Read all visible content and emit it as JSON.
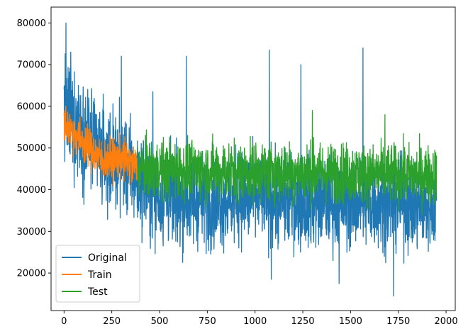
{
  "chart_data": {
    "type": "line",
    "title": "",
    "xlabel": "",
    "ylabel": "",
    "xlim": [
      -68,
      2048
    ],
    "ylim": [
      11000,
      83800
    ],
    "xticks": [
      0,
      250,
      500,
      750,
      1000,
      1250,
      1500,
      1750,
      2000
    ],
    "yticks": [
      20000,
      30000,
      40000,
      50000,
      60000,
      70000,
      80000
    ],
    "grid": false,
    "legend_position": "lower-left",
    "series": [
      {
        "name": "Original",
        "color": "#1f77b4",
        "x_range": [
          0,
          1950
        ],
        "profile": [
          [
            0,
            60000
          ],
          [
            50,
            56000
          ],
          [
            100,
            54000
          ],
          [
            200,
            48000
          ],
          [
            300,
            47000
          ],
          [
            400,
            42000
          ],
          [
            500,
            38000
          ],
          [
            750,
            37500
          ],
          [
            1000,
            38000
          ],
          [
            1250,
            37000
          ],
          [
            1500,
            37000
          ],
          [
            1750,
            36500
          ],
          [
            1950,
            36000
          ]
        ],
        "spread": [
          [
            0,
            9000
          ],
          [
            400,
            8000
          ],
          [
            1950,
            7500
          ]
        ],
        "peaks": [
          [
            10,
            80000
          ],
          [
            35,
            73000
          ],
          [
            75,
            65000
          ],
          [
            130,
            62000
          ],
          [
            170,
            58000
          ],
          [
            300,
            72000
          ],
          [
            465,
            63500
          ],
          [
            640,
            72000
          ],
          [
            1075,
            73500
          ],
          [
            1240,
            70000
          ],
          [
            1565,
            74000
          ],
          [
            1725,
            14500
          ],
          [
            1440,
            17500
          ],
          [
            1085,
            18500
          ]
        ]
      },
      {
        "name": "Train",
        "color": "#ff7f0e",
        "x_range": [
          0,
          385
        ],
        "profile": [
          [
            0,
            56000
          ],
          [
            100,
            51500
          ],
          [
            200,
            47000
          ],
          [
            300,
            47500
          ],
          [
            385,
            45500
          ]
        ],
        "spread": [
          [
            0,
            3500
          ],
          [
            385,
            3500
          ]
        ],
        "peaks": []
      },
      {
        "name": "Test",
        "color": "#2ca02c",
        "x_range": [
          385,
          1950
        ],
        "profile": [
          [
            385,
            45000
          ],
          [
            1950,
            43500
          ]
        ],
        "spread": [
          [
            385,
            5000
          ],
          [
            1950,
            5000
          ]
        ],
        "peaks": [
          [
            1300,
            59000
          ],
          [
            1680,
            58000
          ]
        ]
      }
    ]
  }
}
